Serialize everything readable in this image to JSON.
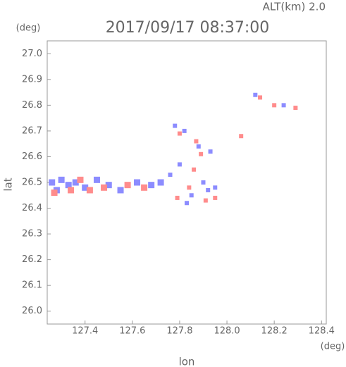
{
  "chart_data": {
    "type": "scatter",
    "title": "2017/09/17 08:37:00",
    "subtitle": "ALT(km) 2.0",
    "x_label": "lon",
    "y_label": "lat",
    "x_unit": "(deg)",
    "y_unit": "(deg)",
    "xlim": [
      127.24,
      128.42
    ],
    "ylim": [
      25.95,
      27.05
    ],
    "xticks": [
      127.4,
      127.6,
      127.8,
      {
        "value": 128.0,
        "label": "128.0"
      },
      128.2,
      128.4
    ],
    "yticks": [
      {
        "value": 26.0,
        "label": "26.0"
      },
      26.1,
      26.2,
      26.3,
      26.4,
      26.5,
      26.6,
      26.7,
      26.8,
      26.9,
      {
        "value": 27.0,
        "label": "27.0"
      }
    ],
    "series": [
      {
        "color": "#8c8cff",
        "x": [
          127.26,
          127.28,
          127.3,
          127.33,
          127.36,
          127.4,
          127.45,
          127.5,
          127.55,
          127.62,
          127.68,
          127.72,
          127.78,
          127.82,
          127.8,
          127.85,
          127.9,
          127.92,
          127.88,
          127.93,
          127.76,
          127.83,
          127.95,
          128.12,
          128.24
        ],
        "y": [
          26.5,
          26.47,
          26.51,
          26.49,
          26.5,
          26.48,
          26.51,
          26.49,
          26.47,
          26.5,
          26.49,
          26.5,
          26.72,
          26.7,
          26.57,
          26.45,
          26.5,
          26.47,
          26.64,
          26.62,
          26.53,
          26.42,
          26.48,
          26.84,
          26.8
        ]
      },
      {
        "color": "#ff8c8c",
        "x": [
          127.27,
          127.34,
          127.38,
          127.42,
          127.48,
          127.58,
          127.65,
          127.8,
          127.86,
          127.89,
          127.84,
          127.79,
          127.91,
          127.87,
          127.95,
          128.14,
          128.2,
          128.29,
          128.06
        ],
        "y": [
          26.46,
          26.47,
          26.51,
          26.47,
          26.48,
          26.49,
          26.48,
          26.69,
          26.55,
          26.61,
          26.48,
          26.44,
          26.43,
          26.66,
          26.44,
          26.83,
          26.8,
          26.79,
          26.68
        ]
      }
    ]
  }
}
